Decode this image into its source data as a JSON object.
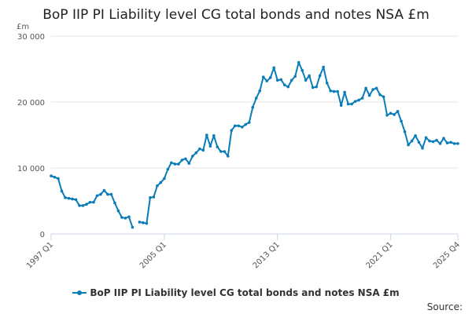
{
  "chart_data": {
    "type": "line",
    "title": "BoP IIP PI Liability level CG total bonds and notes NSA £m",
    "ylabel": "£m",
    "xlabel": "",
    "ylim": [
      0,
      30000
    ],
    "y_ticks": [
      {
        "value": 0,
        "label": "0"
      },
      {
        "value": 10000,
        "label": "10 000"
      },
      {
        "value": 20000,
        "label": "20 000"
      },
      {
        "value": 30000,
        "label": "30 000"
      }
    ],
    "x_ticks": [
      {
        "index": 0,
        "label": "1997 Q1"
      },
      {
        "index": 32,
        "label": "2005 Q1"
      },
      {
        "index": 64,
        "label": "2013 Q1"
      },
      {
        "index": 96,
        "label": "2021 Q1"
      },
      {
        "index": 115,
        "label": "2025 Q4"
      }
    ],
    "x_start": "1997 Q1",
    "x_end": "2025 Q4",
    "color": "#0a7cb8",
    "legend": "BoP IIP PI Liability level CG total bonds and notes NSA £m",
    "source_label": "Source:",
    "series": [
      {
        "name": "BoP IIP PI Liability level CG total bonds and notes NSA £m",
        "values": [
          8800,
          8600,
          8400,
          6500,
          5500,
          5400,
          5300,
          5200,
          4300,
          4300,
          4500,
          4800,
          4800,
          5800,
          6000,
          6600,
          6000,
          6000,
          4700,
          3500,
          2500,
          2400,
          2600,
          1000,
          null,
          1800,
          1700,
          1600,
          5500,
          5600,
          7300,
          7800,
          8400,
          9800,
          10800,
          10600,
          10600,
          11200,
          11400,
          10700,
          11800,
          12300,
          12900,
          12700,
          15000,
          13300,
          14900,
          13200,
          12500,
          12500,
          11800,
          15700,
          16400,
          16400,
          16200,
          16600,
          16900,
          19200,
          20600,
          21700,
          23800,
          23200,
          23700,
          25200,
          23300,
          23400,
          22600,
          22300,
          23300,
          23900,
          26000,
          24800,
          23300,
          24000,
          22200,
          22300,
          24000,
          25300,
          22900,
          21700,
          21600,
          21600,
          19500,
          21500,
          19700,
          19700,
          20100,
          20300,
          20600,
          22100,
          21000,
          21900,
          22100,
          21100,
          20800,
          18000,
          18300,
          18100,
          18600,
          17100,
          15500,
          13500,
          14100,
          14900,
          13900,
          13000,
          14600,
          14100,
          14000,
          14200,
          13700,
          14500,
          13800,
          13900,
          13700,
          13700
        ]
      }
    ]
  }
}
